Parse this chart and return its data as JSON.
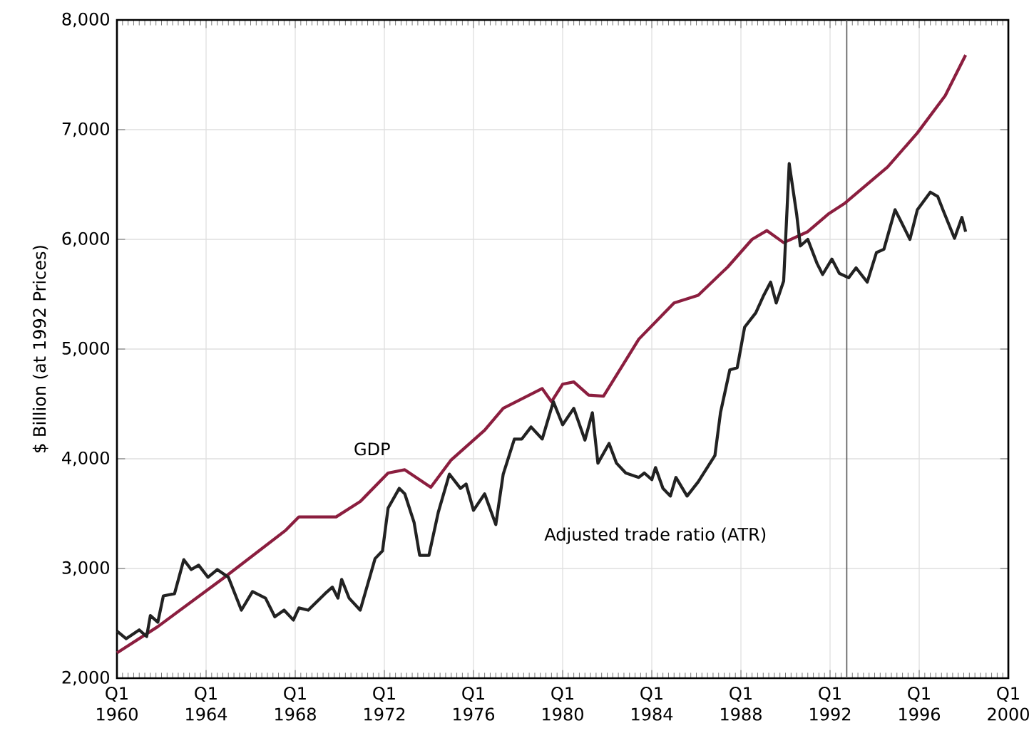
{
  "chart_data": {
    "type": "line",
    "ylabel": "$ Billion (at 1992 Prices)",
    "xlim": [
      "1960-01",
      "2000-01"
    ],
    "ylim": [
      2000,
      8000
    ],
    "xticks": [
      {
        "value": "1960-01",
        "label": "Q1 1960"
      },
      {
        "value": "1964-01",
        "label": "Q1 1964"
      },
      {
        "value": "1968-01",
        "label": "Q1 1968"
      },
      {
        "value": "1972-01",
        "label": "Q1 1972"
      },
      {
        "value": "1976-01",
        "label": "Q1 1976"
      },
      {
        "value": "1980-01",
        "label": "Q1 1980"
      },
      {
        "value": "1984-01",
        "label": "Q1 1984"
      },
      {
        "value": "1988-01",
        "label": "Q1 1988"
      },
      {
        "value": "1992-01",
        "label": "Q1 1992"
      },
      {
        "value": "1996-01",
        "label": "Q1 1996"
      },
      {
        "value": "2000-01",
        "label": "Q1 2000"
      }
    ],
    "yticks": [
      {
        "value": 2000,
        "label": "2,000"
      },
      {
        "value": 3000,
        "label": "3,000"
      },
      {
        "value": 4000,
        "label": "4,000"
      },
      {
        "value": 5000,
        "label": "5,000"
      },
      {
        "value": 6000,
        "label": "6,000"
      },
      {
        "value": 7000,
        "label": "7,000"
      },
      {
        "value": 8000,
        "label": "8,000"
      }
    ],
    "grid": true,
    "legend": false,
    "marker": "none",
    "line_style": "solid",
    "ref_lines": [
      {
        "axis": "x",
        "value": "1992-10",
        "color": "#555555"
      }
    ],
    "series": [
      {
        "name": "GDP",
        "color": "#8b1e3f",
        "x": [
          "1960-01",
          "1961-11",
          "1964-11",
          "1967-08",
          "1968-03",
          "1969-11",
          "1970-12",
          "1972-03",
          "1972-12",
          "1974-02",
          "1975-01",
          "1976-07",
          "1977-05",
          "1979-02",
          "1979-07",
          "1980-01",
          "1980-07",
          "1981-03",
          "1981-11",
          "1983-06",
          "1985-01",
          "1986-02",
          "1987-06",
          "1988-07",
          "1989-03",
          "1989-12",
          "1991-01",
          "1991-12",
          "1992-09",
          "1994-08",
          "1995-12",
          "1997-03",
          "1998-02"
        ],
        "values": [
          2230,
          2470,
          2920,
          3350,
          3470,
          3470,
          3610,
          3870,
          3900,
          3740,
          3990,
          4260,
          4460,
          4640,
          4520,
          4680,
          4700,
          4580,
          4570,
          5090,
          5420,
          5490,
          5750,
          6000,
          6080,
          5970,
          6070,
          6230,
          6330,
          6660,
          6970,
          7310,
          7680
        ]
      },
      {
        "name": "Adjusted trade ratio (ATR)",
        "color": "#222222",
        "x": [
          "1960-01",
          "1960-06",
          "1961-01",
          "1961-05",
          "1961-07",
          "1961-11",
          "1962-02",
          "1962-08",
          "1963-01",
          "1963-05",
          "1963-09",
          "1964-02",
          "1964-07",
          "1965-01",
          "1965-08",
          "1966-02",
          "1966-09",
          "1967-02",
          "1967-07",
          "1967-12",
          "1968-03",
          "1968-08",
          "1969-05",
          "1969-09",
          "1969-12",
          "1970-02",
          "1970-06",
          "1970-12",
          "1971-08",
          "1971-12",
          "1972-03",
          "1972-09",
          "1972-12",
          "1973-05",
          "1973-08",
          "1974-01",
          "1974-06",
          "1974-12",
          "1975-06",
          "1975-09",
          "1976-01",
          "1976-07",
          "1977-01",
          "1977-05",
          "1977-11",
          "1978-03",
          "1978-08",
          "1979-02",
          "1979-08",
          "1980-01",
          "1980-07",
          "1981-01",
          "1981-05",
          "1981-08",
          "1982-02",
          "1982-06",
          "1982-11",
          "1983-06",
          "1983-09",
          "1984-01",
          "1984-03",
          "1984-07",
          "1984-11",
          "1985-02",
          "1985-08",
          "1986-02",
          "1986-11",
          "1987-02",
          "1987-07",
          "1987-11",
          "1988-03",
          "1988-09",
          "1989-01",
          "1989-05",
          "1989-08",
          "1989-12",
          "1990-03",
          "1990-07",
          "1990-09",
          "1991-01",
          "1991-06",
          "1991-09",
          "1992-02",
          "1992-06",
          "1992-11",
          "1993-03",
          "1993-09",
          "1994-02",
          "1994-06",
          "1994-12",
          "1995-03",
          "1995-08",
          "1995-12",
          "1996-07",
          "1996-11",
          "1997-02",
          "1997-08",
          "1997-12",
          "1998-02"
        ],
        "values": [
          2430,
          2360,
          2440,
          2380,
          2570,
          2510,
          2750,
          2770,
          3080,
          2990,
          3030,
          2920,
          2990,
          2920,
          2620,
          2790,
          2730,
          2560,
          2620,
          2530,
          2640,
          2620,
          2770,
          2830,
          2730,
          2900,
          2730,
          2620,
          3090,
          3160,
          3550,
          3730,
          3680,
          3420,
          3120,
          3120,
          3510,
          3860,
          3730,
          3770,
          3530,
          3680,
          3400,
          3860,
          4180,
          4180,
          4290,
          4180,
          4520,
          4310,
          4460,
          4170,
          4420,
          3960,
          4140,
          3960,
          3870,
          3830,
          3870,
          3810,
          3920,
          3730,
          3660,
          3830,
          3660,
          3790,
          4030,
          4420,
          4810,
          4830,
          5200,
          5330,
          5480,
          5610,
          5420,
          5620,
          6690,
          6230,
          5940,
          6000,
          5780,
          5680,
          5820,
          5690,
          5650,
          5740,
          5610,
          5880,
          5910,
          6270,
          6170,
          6000,
          6270,
          6430,
          6390,
          6260,
          6010,
          6200,
          6070
        ]
      }
    ]
  }
}
